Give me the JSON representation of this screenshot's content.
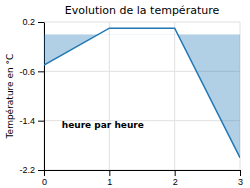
{
  "chart_data": {
    "type": "area",
    "title": "Evolution de la température",
    "xlabel": "heure par heure",
    "ylabel": "Température en °C",
    "x": [
      0,
      1,
      2,
      3
    ],
    "values": [
      -0.5,
      0.1,
      0.1,
      -2.0
    ],
    "xlim": [
      0,
      3
    ],
    "ylim": [
      -2.2,
      0.2
    ],
    "xticks": [
      0,
      1,
      2,
      3
    ],
    "yticks": [
      0.2,
      -0.6,
      -1.4,
      -2.2
    ],
    "grid": true
  }
}
